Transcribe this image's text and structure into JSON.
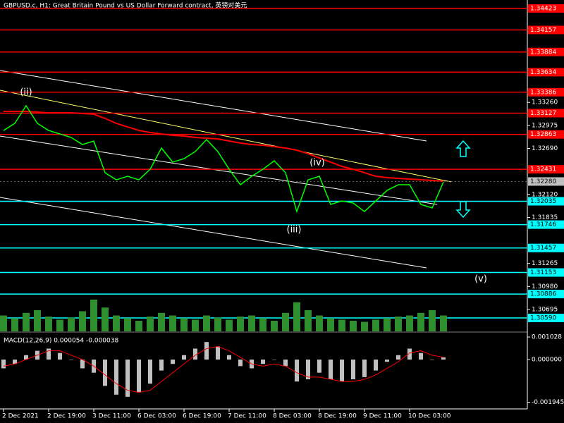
{
  "chart_data": {
    "type": "line",
    "title": "GBPUSD.c, H1:  Great Britain Pound vs US Dollar Forward contract, 英镑对美元",
    "price_color": "#00ff00",
    "ma_color": "#ff0000",
    "ylim": [
      1.30424,
      1.34528
    ],
    "yticks": [
      {
        "value": 1.3326,
        "label": "1.33260"
      },
      1.32975,
      {
        "value": 1.3269,
        "label": "1.32690"
      },
      {
        "value": 1.3212,
        "label": "1.32120"
      },
      1.31835,
      1.31265,
      {
        "value": 1.3098,
        "label": "1.30980"
      },
      1.30695
    ],
    "levels": [
      {
        "value": 1.34423,
        "color": "#ff0000"
      },
      {
        "value": 1.34157,
        "color": "#ff0000"
      },
      {
        "value": 1.33884,
        "color": "#ff0000"
      },
      {
        "value": 1.33634,
        "color": "#ff0000"
      },
      {
        "value": 1.33386,
        "color": "#ff0000"
      },
      {
        "value": 1.33127,
        "color": "#ff0000"
      },
      {
        "value": 1.32863,
        "color": "#ff0000"
      },
      {
        "value": 1.32431,
        "color": "#ff0000"
      },
      {
        "value": 1.32035,
        "color": "#00ffff"
      },
      {
        "value": 1.31746,
        "color": "#00ffff"
      },
      {
        "value": 1.31457,
        "color": "#00ffff"
      },
      {
        "value": 1.31153,
        "color": "#00ffff"
      },
      {
        "value": 1.30886,
        "color": "#00ffff"
      },
      {
        "value": 1.3059,
        "label": "1.30590",
        "color": "#00ffff"
      }
    ],
    "bid": {
      "value": 1.3228,
      "label": "1.32280"
    },
    "categories": [
      "2 Dec 2021",
      null,
      null,
      null,
      "2 Dec 19:00",
      null,
      null,
      null,
      "3 Dec 11:00",
      null,
      null,
      null,
      "6 Dec 03:00",
      null,
      null,
      null,
      "6 Dec 19:00",
      null,
      null,
      null,
      "7 Dec 11:00",
      null,
      null,
      null,
      "8 Dec 03:00",
      null,
      null,
      null,
      "8 Dec 19:00",
      null,
      null,
      null,
      "9 Dec 11:00",
      null,
      null,
      null,
      "10 Dec 03:00",
      null,
      null,
      null
    ],
    "close": [
      1.32912,
      1.33,
      1.33218,
      1.33,
      1.32912,
      1.32869,
      1.32825,
      1.32738,
      1.32781,
      1.32389,
      1.32301,
      1.32345,
      1.32301,
      1.32432,
      1.32694,
      1.3252,
      1.32563,
      1.32651,
      1.32799,
      1.32651,
      1.32432,
      1.3224,
      1.32345,
      1.32432,
      1.32537,
      1.32389,
      1.31908,
      1.32301,
      1.32345,
      1.31996,
      1.32039,
      1.32013,
      1.31908,
      1.32039,
      1.3217,
      1.3224,
      1.3224,
      1.31996,
      1.31952,
      1.32275
    ],
    "ma": [
      1.33148,
      1.33148,
      1.33148,
      1.3314,
      1.33131,
      1.33131,
      1.33131,
      1.33122,
      1.33114,
      1.33061,
      1.33,
      1.32956,
      1.32913,
      1.32886,
      1.32869,
      1.32851,
      1.32843,
      1.32825,
      1.32817,
      1.32808,
      1.32782,
      1.32756,
      1.32738,
      1.32729,
      1.32712,
      1.32694,
      1.32668,
      1.32625,
      1.32572,
      1.3252,
      1.32467,
      1.32432,
      1.32389,
      1.32345,
      1.32328,
      1.32319,
      1.3231,
      1.32301,
      1.32293,
      1.32284
    ],
    "volume": [
      30,
      25,
      35,
      40,
      28,
      22,
      26,
      38,
      60,
      45,
      30,
      25,
      20,
      28,
      35,
      30,
      25,
      22,
      30,
      26,
      22,
      28,
      30,
      25,
      20,
      35,
      55,
      40,
      30,
      25,
      22,
      20,
      18,
      22,
      25,
      28,
      30,
      35,
      40,
      30
    ],
    "annotations": [
      "(ii)",
      "(iii)",
      "(iv)",
      "(v)"
    ],
    "macd": {
      "label": "MACD(12,26,9) 0.000054 -0.000038",
      "ylim": [
        -0.00225,
        0.00119
      ],
      "yticks": [
        0.001028,
        {
          "value": 0,
          "label": "0.000000"
        },
        -0.001945
      ],
      "hist_color": "#c0c0c0",
      "signal_color": "#ff0000",
      "hist": [
        -0.0004,
        -0.0002,
        0.0002,
        0.0004,
        0.0005,
        0.0003,
        0.0,
        -0.0004,
        -0.0006,
        -0.0012,
        -0.0016,
        -0.0017,
        -0.0015,
        -0.0011,
        -0.0005,
        -0.0002,
        0.0002,
        0.0005,
        0.0008,
        0.0006,
        0.0002,
        -0.0003,
        -0.0004,
        -0.0002,
        0.0,
        -0.0003,
        -0.001,
        -0.0009,
        -0.0006,
        -0.0009,
        -0.001,
        -0.0009,
        -0.0008,
        -0.0005,
        -0.0001,
        0.0002,
        0.0005,
        0.0003,
        0.0,
        0.0001
      ],
      "signal": [
        -0.0003,
        -0.0002,
        0.0,
        0.0002,
        0.0004,
        0.0004,
        0.0002,
        0.0,
        -0.0003,
        -0.0007,
        -0.0011,
        -0.0014,
        -0.0015,
        -0.0014,
        -0.001,
        -0.0006,
        -0.0002,
        0.0002,
        0.0005,
        0.0006,
        0.0004,
        0.0001,
        -0.0002,
        -0.0003,
        -0.0002,
        -0.0003,
        -0.0006,
        -0.0008,
        -0.0008,
        -0.0009,
        -0.001,
        -0.001,
        -0.0009,
        -0.0007,
        -0.0004,
        -0.0001,
        0.0003,
        0.0004,
        0.0002,
        0.0001
      ]
    }
  }
}
